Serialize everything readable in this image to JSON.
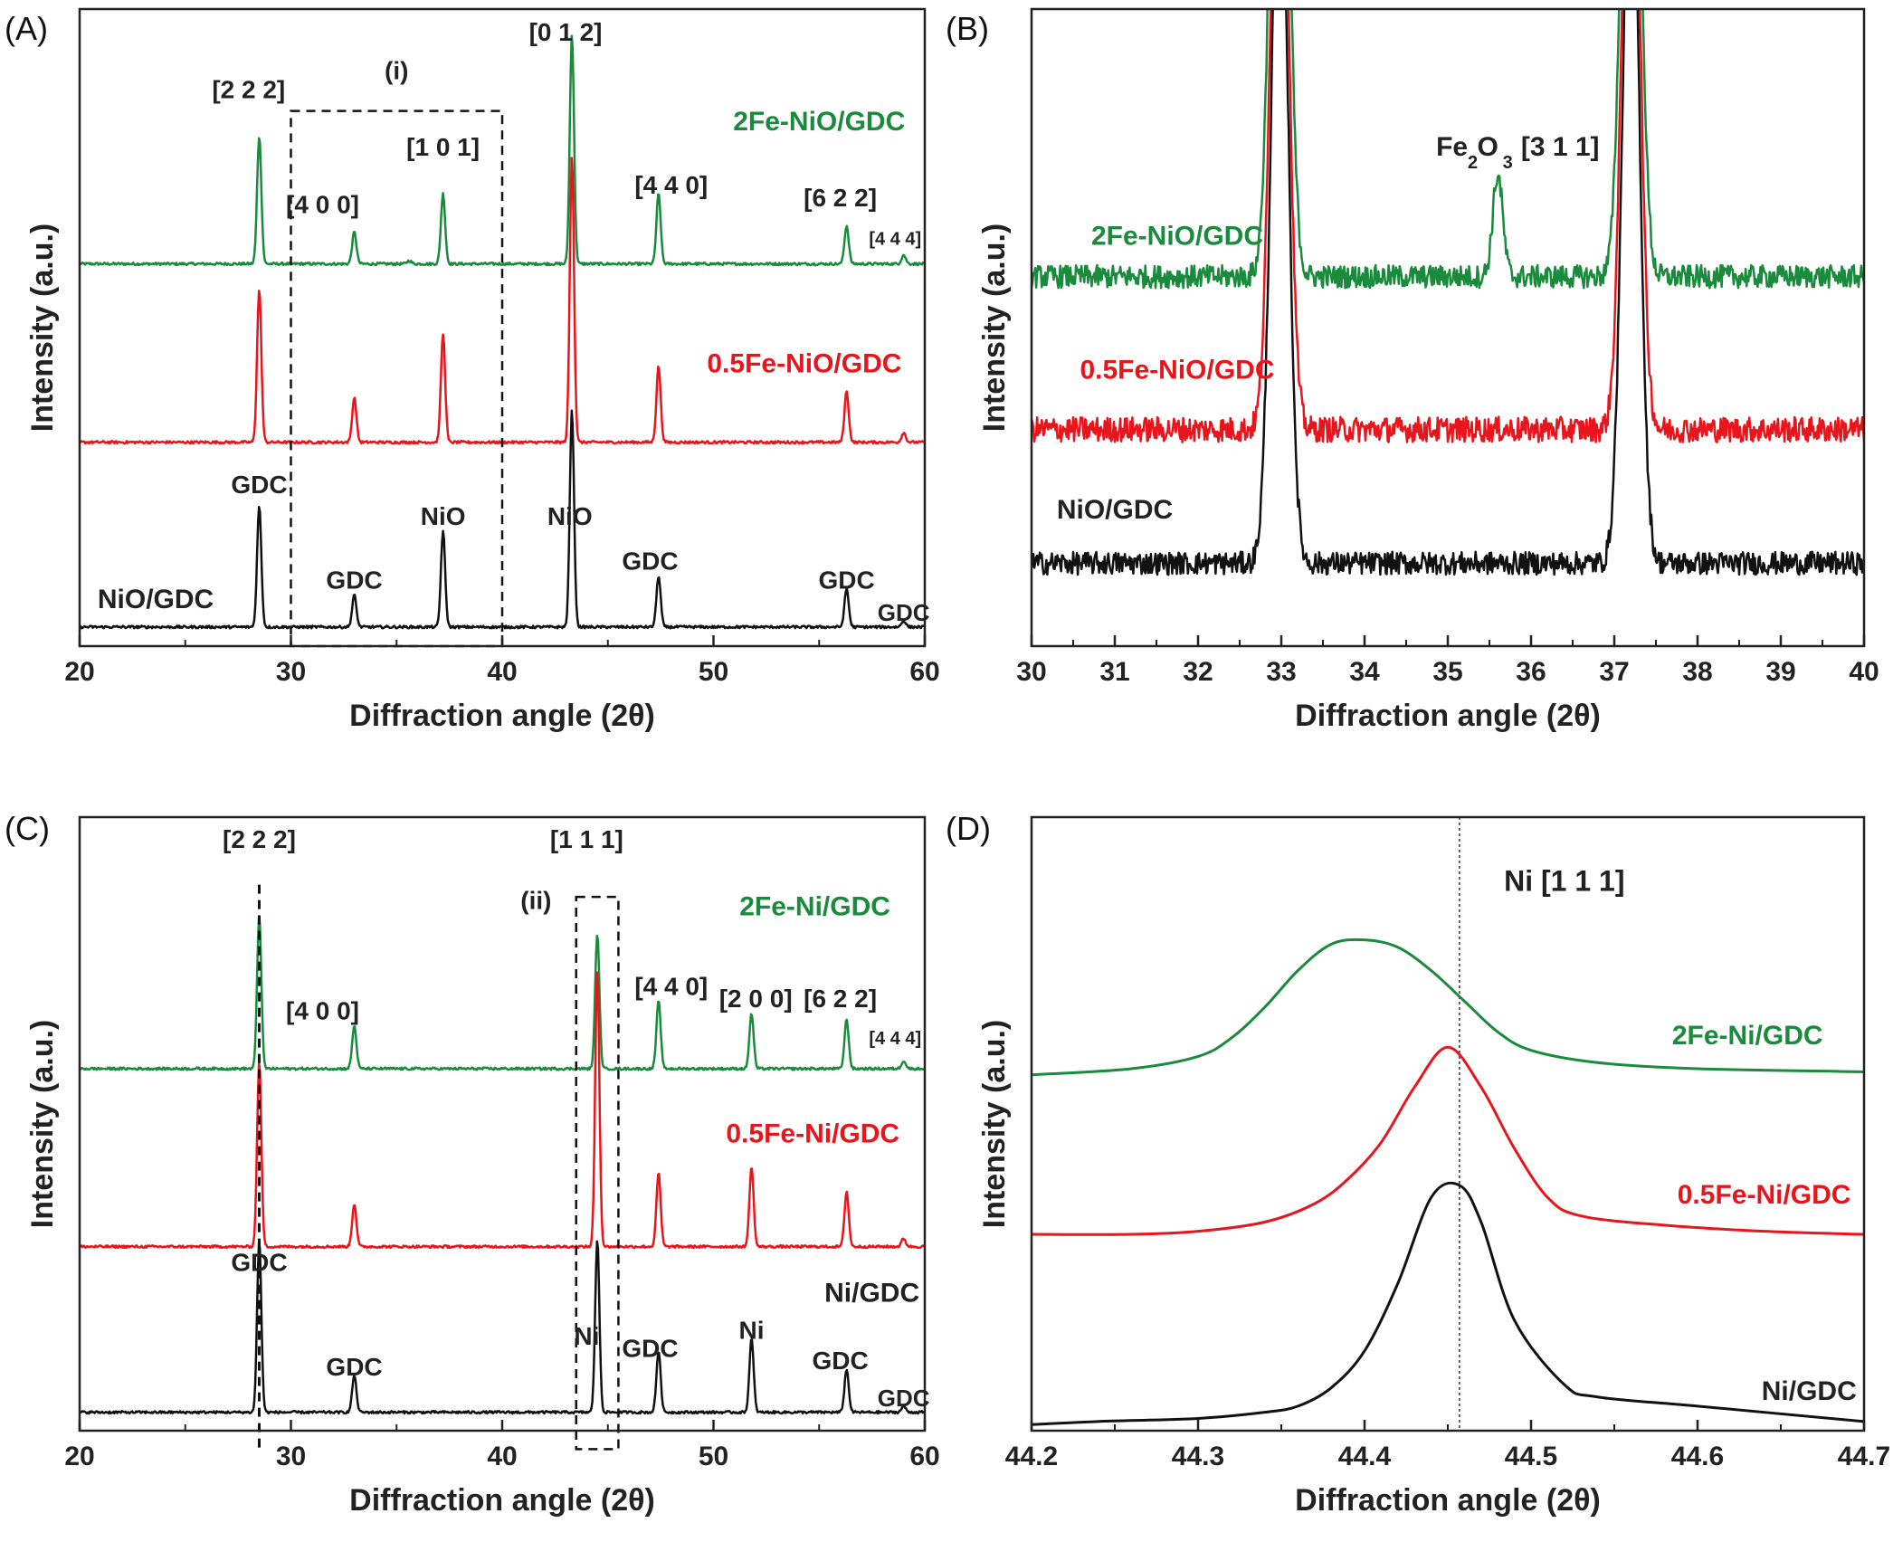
{
  "colors": {
    "NiO_GDC": "#111111",
    "Fe05_NiO": "#e8151c",
    "Fe2_NiO": "#1a8a3c",
    "axis": "#222222"
  },
  "chart_data": [
    {
      "panel": "(A)",
      "type": "line",
      "xlabel": "Diffraction angle (2θ)",
      "ylabel": "Intensity (a.u.)",
      "xlim": [
        20,
        60
      ],
      "xticks": [
        20,
        30,
        40,
        50,
        60
      ],
      "ylim": [
        0,
        1
      ],
      "series": [
        {
          "name": "2Fe-NiO/GDC",
          "color": "#1a8a3c",
          "baseline": 0.6,
          "noise": 0.002,
          "peaks": [
            {
              "x": 28.5,
              "h": 0.2
            },
            {
              "x": 33.0,
              "h": 0.05
            },
            {
              "x": 35.6,
              "h": 0.005
            },
            {
              "x": 37.2,
              "h": 0.11
            },
            {
              "x": 43.3,
              "h": 0.36
            },
            {
              "x": 47.4,
              "h": 0.11
            },
            {
              "x": 56.3,
              "h": 0.06
            },
            {
              "x": 59.0,
              "h": 0.014
            }
          ]
        },
        {
          "name": "0.5Fe-NiO/GDC",
          "color": "#e8151c",
          "baseline": 0.32,
          "noise": 0.002,
          "peaks": [
            {
              "x": 28.5,
              "h": 0.24
            },
            {
              "x": 33.0,
              "h": 0.07
            },
            {
              "x": 37.2,
              "h": 0.17
            },
            {
              "x": 43.3,
              "h": 0.45
            },
            {
              "x": 47.4,
              "h": 0.12
            },
            {
              "x": 56.3,
              "h": 0.08
            },
            {
              "x": 59.0,
              "h": 0.015
            }
          ]
        },
        {
          "name": "NiO/GDC",
          "color": "#111111",
          "baseline": 0.03,
          "noise": 0.002,
          "peaks": [
            {
              "x": 28.5,
              "h": 0.19
            },
            {
              "x": 33.0,
              "h": 0.05
            },
            {
              "x": 37.2,
              "h": 0.15
            },
            {
              "x": 43.3,
              "h": 0.34
            },
            {
              "x": 47.4,
              "h": 0.08
            },
            {
              "x": 56.3,
              "h": 0.06
            },
            {
              "x": 59.0,
              "h": 0.01
            }
          ]
        }
      ],
      "annotations": [
        {
          "text": "[2 2 2]",
          "x": 28.0,
          "y": 0.86,
          "color": "#222222",
          "size": 28
        },
        {
          "text": "(i)",
          "x": 35.0,
          "y": 0.89,
          "color": "#222222",
          "size": 28
        },
        {
          "text": "[4 0 0]",
          "x": 31.5,
          "y": 0.68,
          "color": "#222222",
          "size": 28
        },
        {
          "text": "[1 0 1]",
          "x": 37.2,
          "y": 0.77,
          "color": "#222222",
          "size": 28
        },
        {
          "text": "[0 1 2]",
          "x": 43.0,
          "y": 0.95,
          "color": "#222222",
          "size": 28
        },
        {
          "text": "2Fe-NiO/GDC",
          "x": 55.0,
          "y": 0.81,
          "color": "#1a8a3c",
          "size": 30
        },
        {
          "text": "[4 4 0]",
          "x": 48.0,
          "y": 0.71,
          "color": "#222222",
          "size": 28
        },
        {
          "text": "[6 2 2]",
          "x": 56.0,
          "y": 0.69,
          "color": "#222222",
          "size": 28
        },
        {
          "text": "[4 4 4]",
          "x": 58.6,
          "y": 0.63,
          "color": "#222222",
          "size": 20
        },
        {
          "text": "0.5Fe-NiO/GDC",
          "x": 54.3,
          "y": 0.43,
          "color": "#e8151c",
          "size": 30
        },
        {
          "text": "GDC",
          "x": 28.5,
          "y": 0.24,
          "color": "#222222",
          "size": 28
        },
        {
          "text": "NiO",
          "x": 37.2,
          "y": 0.19,
          "color": "#222222",
          "size": 28
        },
        {
          "text": "NiO",
          "x": 43.2,
          "y": 0.19,
          "color": "#222222",
          "size": 28
        },
        {
          "text": "GDC",
          "x": 33.0,
          "y": 0.09,
          "color": "#222222",
          "size": 28
        },
        {
          "text": "GDC",
          "x": 47.0,
          "y": 0.12,
          "color": "#222222",
          "size": 28
        },
        {
          "text": "NiO/GDC",
          "x": 23.6,
          "y": 0.06,
          "color": "#222222",
          "size": 30
        },
        {
          "text": "GDC",
          "x": 56.3,
          "y": 0.09,
          "color": "#222222",
          "size": 28
        },
        {
          "text": "GDC",
          "x": 59.0,
          "y": 0.04,
          "color": "#222222",
          "size": 26
        }
      ],
      "boxes": [
        {
          "x0": 30,
          "x1": 40,
          "y0": 0.0,
          "y1": 0.84
        }
      ]
    },
    {
      "panel": "(B)",
      "type": "line",
      "xlabel": "Diffraction angle (2θ)",
      "ylabel": "Intensity (a.u.)",
      "xlim": [
        30,
        40
      ],
      "xticks": [
        30,
        31,
        32,
        33,
        34,
        35,
        36,
        37,
        38,
        39,
        40
      ],
      "ylim": [
        0,
        1
      ],
      "series": [
        {
          "name": "2Fe-NiO/GDC",
          "color": "#1a8a3c",
          "baseline": 0.58,
          "noise": 0.018,
          "peaks": [
            {
              "x": 32.98,
              "h": 1.2,
              "w": 0.1
            },
            {
              "x": 37.2,
              "h": 1.2,
              "w": 0.1
            },
            {
              "x": 35.6,
              "h": 0.16,
              "w": 0.06
            }
          ]
        },
        {
          "name": "0.5Fe-NiO/GDC",
          "color": "#e8151c",
          "baseline": 0.34,
          "noise": 0.02,
          "peaks": [
            {
              "x": 32.98,
              "h": 1.2,
              "w": 0.1
            },
            {
              "x": 37.2,
              "h": 1.2,
              "w": 0.1
            }
          ]
        },
        {
          "name": "NiO/GDC",
          "color": "#111111",
          "baseline": 0.13,
          "noise": 0.018,
          "peaks": [
            {
              "x": 32.98,
              "h": 1.2,
              "w": 0.1
            },
            {
              "x": 37.2,
              "h": 1.2,
              "w": 0.1
            }
          ]
        }
      ],
      "annotations": [
        {
          "text": "Fe",
          "x": 35.05,
          "y": 0.77,
          "color": "#222222",
          "size": 30
        },
        {
          "text": "2",
          "x": 35.3,
          "y": 0.75,
          "color": "#222222",
          "size": 20
        },
        {
          "text": "O",
          "x": 35.48,
          "y": 0.77,
          "color": "#222222",
          "size": 30
        },
        {
          "text": "3",
          "x": 35.72,
          "y": 0.75,
          "color": "#222222",
          "size": 20
        },
        {
          "text": "[3 1 1]",
          "x": 36.35,
          "y": 0.77,
          "color": "#222222",
          "size": 30
        },
        {
          "text": "2Fe-NiO/GDC",
          "x": 31.75,
          "y": 0.63,
          "color": "#1a8a3c",
          "size": 30
        },
        {
          "text": "0.5Fe-NiO/GDC",
          "x": 31.75,
          "y": 0.42,
          "color": "#e8151c",
          "size": 30
        },
        {
          "text": "NiO/GDC",
          "x": 31.0,
          "y": 0.2,
          "color": "#222222",
          "size": 30
        }
      ]
    },
    {
      "panel": "(C)",
      "type": "line",
      "xlabel": "Diffraction angle (2θ)",
      "ylabel": "Intensity (a.u.)",
      "xlim": [
        20,
        60
      ],
      "xticks": [
        20,
        30,
        40,
        50,
        60
      ],
      "ylim": [
        0,
        1
      ],
      "series": [
        {
          "name": "2Fe-Ni/GDC",
          "color": "#1a8a3c",
          "baseline": 0.59,
          "noise": 0.002,
          "peaks": [
            {
              "x": 28.5,
              "h": 0.25
            },
            {
              "x": 33.0,
              "h": 0.07
            },
            {
              "x": 44.5,
              "h": 0.22
            },
            {
              "x": 47.4,
              "h": 0.11
            },
            {
              "x": 51.8,
              "h": 0.09
            },
            {
              "x": 56.3,
              "h": 0.08
            },
            {
              "x": 59.0,
              "h": 0.013
            }
          ]
        },
        {
          "name": "0.5Fe-Ni/GDC",
          "color": "#e8151c",
          "baseline": 0.3,
          "noise": 0.002,
          "peaks": [
            {
              "x": 28.5,
              "h": 0.3
            },
            {
              "x": 33.0,
              "h": 0.07
            },
            {
              "x": 44.5,
              "h": 0.45
            },
            {
              "x": 47.4,
              "h": 0.12
            },
            {
              "x": 51.8,
              "h": 0.13
            },
            {
              "x": 56.3,
              "h": 0.09
            },
            {
              "x": 59.0,
              "h": 0.013
            }
          ]
        },
        {
          "name": "Ni/GDC",
          "color": "#111111",
          "baseline": 0.03,
          "noise": 0.002,
          "peaks": [
            {
              "x": 28.5,
              "h": 0.28
            },
            {
              "x": 33.0,
              "h": 0.06
            },
            {
              "x": 44.5,
              "h": 0.28
            },
            {
              "x": 47.4,
              "h": 0.1
            },
            {
              "x": 51.8,
              "h": 0.12
            },
            {
              "x": 56.3,
              "h": 0.07
            },
            {
              "x": 59.0,
              "h": 0.01
            }
          ]
        }
      ],
      "annotations": [
        {
          "text": "[2 2 2]",
          "x": 28.5,
          "y": 0.95,
          "color": "#222222",
          "size": 28
        },
        {
          "text": "[1 1 1]",
          "x": 44.0,
          "y": 0.95,
          "color": "#222222",
          "size": 28
        },
        {
          "text": "(ii)",
          "x": 41.6,
          "y": 0.85,
          "color": "#222222",
          "size": 28
        },
        {
          "text": "2Fe-Ni/GDC",
          "x": 54.8,
          "y": 0.84,
          "color": "#1a8a3c",
          "size": 30
        },
        {
          "text": "[4 0 0]",
          "x": 31.5,
          "y": 0.67,
          "color": "#222222",
          "size": 28
        },
        {
          "text": "[4 4 0]",
          "x": 48.0,
          "y": 0.71,
          "color": "#222222",
          "size": 28
        },
        {
          "text": "[2 0 0]",
          "x": 52.0,
          "y": 0.69,
          "color": "#222222",
          "size": 28
        },
        {
          "text": "[6 2 2]",
          "x": 56.0,
          "y": 0.69,
          "color": "#222222",
          "size": 28
        },
        {
          "text": "[4 4 4]",
          "x": 58.6,
          "y": 0.63,
          "color": "#222222",
          "size": 20
        },
        {
          "text": "0.5Fe-Ni/GDC",
          "x": 54.7,
          "y": 0.47,
          "color": "#e8151c",
          "size": 30
        },
        {
          "text": "GDC",
          "x": 28.5,
          "y": 0.26,
          "color": "#222222",
          "size": 28
        },
        {
          "text": "Ni/GDC",
          "x": 57.5,
          "y": 0.21,
          "color": "#222222",
          "size": 30
        },
        {
          "text": "Ni",
          "x": 44.0,
          "y": 0.14,
          "color": "#222222",
          "size": 28
        },
        {
          "text": "Ni",
          "x": 51.8,
          "y": 0.15,
          "color": "#222222",
          "size": 28
        },
        {
          "text": "GDC",
          "x": 33.0,
          "y": 0.09,
          "color": "#222222",
          "size": 28
        },
        {
          "text": "GDC",
          "x": 47.0,
          "y": 0.12,
          "color": "#222222",
          "size": 28
        },
        {
          "text": "GDC",
          "x": 56.0,
          "y": 0.1,
          "color": "#222222",
          "size": 28
        },
        {
          "text": "GDC",
          "x": 59.0,
          "y": 0.04,
          "color": "#222222",
          "size": 26
        }
      ],
      "vlines": [
        {
          "x": 28.5,
          "y0": -0.03,
          "y1": 0.89
        }
      ],
      "boxes": [
        {
          "x0": 43.5,
          "x1": 45.5,
          "y0": -0.03,
          "y1": 0.87
        }
      ]
    },
    {
      "panel": "(D)",
      "type": "line",
      "xlabel": "Diffraction angle (2θ)",
      "ylabel": "Intensity (a.u.)",
      "xlim": [
        44.2,
        44.7
      ],
      "xticks": [
        44.2,
        44.3,
        44.4,
        44.5,
        44.6,
        44.7
      ],
      "ylim": [
        0,
        1
      ],
      "reference_line": 44.457,
      "series": [
        {
          "name": "2Fe-Ni/GDC",
          "color": "#1a8a3c",
          "x": [
            44.2,
            44.26,
            44.3,
            44.32,
            44.34,
            44.36,
            44.38,
            44.4,
            44.42,
            44.44,
            44.46,
            44.48,
            44.5,
            44.54,
            44.6,
            44.7
          ],
          "y": [
            0.58,
            0.59,
            0.61,
            0.64,
            0.69,
            0.75,
            0.793,
            0.8,
            0.788,
            0.75,
            0.7,
            0.65,
            0.62,
            0.6,
            0.59,
            0.585
          ]
        },
        {
          "name": "0.5Fe-Ni/GDC",
          "color": "#e8151c",
          "x": [
            44.2,
            44.26,
            44.3,
            44.34,
            44.37,
            44.39,
            44.41,
            44.43,
            44.45,
            44.47,
            44.49,
            44.51,
            44.53,
            44.58,
            44.64,
            44.7
          ],
          "y": [
            0.32,
            0.32,
            0.325,
            0.34,
            0.37,
            0.41,
            0.47,
            0.56,
            0.625,
            0.56,
            0.46,
            0.38,
            0.35,
            0.335,
            0.325,
            0.32
          ]
        },
        {
          "name": "Ni/GDC",
          "color": "#111111",
          "x": [
            44.2,
            44.24,
            44.3,
            44.34,
            44.36,
            44.38,
            44.4,
            44.42,
            44.44,
            44.457,
            44.47,
            44.49,
            44.52,
            44.54,
            44.6,
            44.7
          ],
          "y": [
            0.01,
            0.015,
            0.02,
            0.03,
            0.04,
            0.07,
            0.13,
            0.24,
            0.38,
            0.4,
            0.34,
            0.18,
            0.075,
            0.055,
            0.04,
            0.015
          ]
        }
      ],
      "annotations": [
        {
          "text": "Ni [1 1 1]",
          "x": 44.52,
          "y": 0.88,
          "color": "#222222",
          "size": 32
        },
        {
          "text": "2Fe-Ni/GDC",
          "x": 44.63,
          "y": 0.63,
          "color": "#1a8a3c",
          "size": 30
        },
        {
          "text": "0.5Fe-Ni/GDC",
          "x": 44.64,
          "y": 0.37,
          "color": "#e8151c",
          "size": 30
        },
        {
          "text": "Ni/GDC",
          "x": 44.667,
          "y": 0.05,
          "color": "#222222",
          "size": 30
        }
      ]
    }
  ]
}
